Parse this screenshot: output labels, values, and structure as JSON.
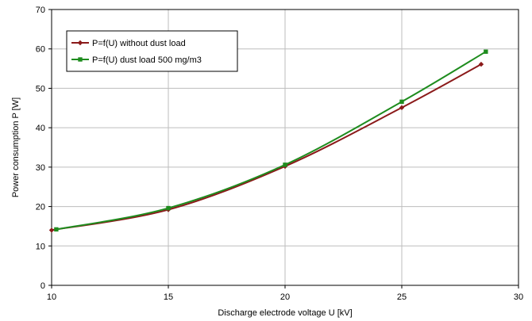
{
  "chart_data": {
    "type": "line",
    "title": "",
    "xlabel": "Discharge electrode voltage U  [kV]",
    "ylabel": "Power consumption P [W]",
    "xlim": [
      10,
      30
    ],
    "ylim": [
      0,
      70
    ],
    "x_ticks": [
      "10",
      "15",
      "20",
      "25",
      "30"
    ],
    "y_ticks": [
      "0",
      "10",
      "20",
      "30",
      "40",
      "50",
      "60",
      "70"
    ],
    "grid": true,
    "legend_position": "top-left",
    "series": [
      {
        "name": "P=f(U) without dust load",
        "color": "#8b1a1a",
        "marker": "diamond",
        "x": [
          10.0,
          15.0,
          20.0,
          25.0,
          28.4
        ],
        "y": [
          14.0,
          19.2,
          30.2,
          45.1,
          56.1
        ]
      },
      {
        "name": "P=f(U) dust load 500 mg/m3",
        "color": "#1e8c1e",
        "marker": "square",
        "x": [
          10.2,
          15.0,
          20.0,
          25.0,
          28.6
        ],
        "y": [
          14.2,
          19.6,
          30.6,
          46.6,
          59.3
        ]
      }
    ]
  }
}
